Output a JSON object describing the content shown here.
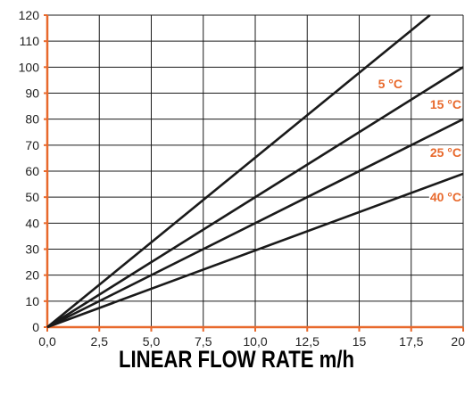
{
  "colors": {
    "accent": "#e8692c",
    "grid": "#1a1a1a",
    "line": "#1a1a1a"
  },
  "chart_data": {
    "type": "line",
    "title": "",
    "xlabel": "LINEAR FLOW RATE m/h",
    "ylabel": "",
    "xlim": [
      0,
      20
    ],
    "ylim": [
      0,
      120
    ],
    "grid": true,
    "x_ticks": [
      "0,0",
      "2,5",
      "5,0",
      "7,5",
      "10,0",
      "12,5",
      "15",
      "17,5",
      "20"
    ],
    "y_ticks": [
      "0",
      "10",
      "20",
      "30",
      "40",
      "50",
      "60",
      "70",
      "80",
      "90",
      "100",
      "110",
      "120"
    ],
    "series": [
      {
        "name": "5 °C",
        "x": [
          0,
          18.4
        ],
        "y": [
          0,
          120
        ]
      },
      {
        "name": "15 °C",
        "x": [
          0,
          20
        ],
        "y": [
          0,
          100
        ]
      },
      {
        "name": "25 °C",
        "x": [
          0,
          20
        ],
        "y": [
          0,
          80
        ]
      },
      {
        "name": "40 °C",
        "x": [
          0,
          20
        ],
        "y": [
          0,
          59
        ]
      }
    ]
  }
}
